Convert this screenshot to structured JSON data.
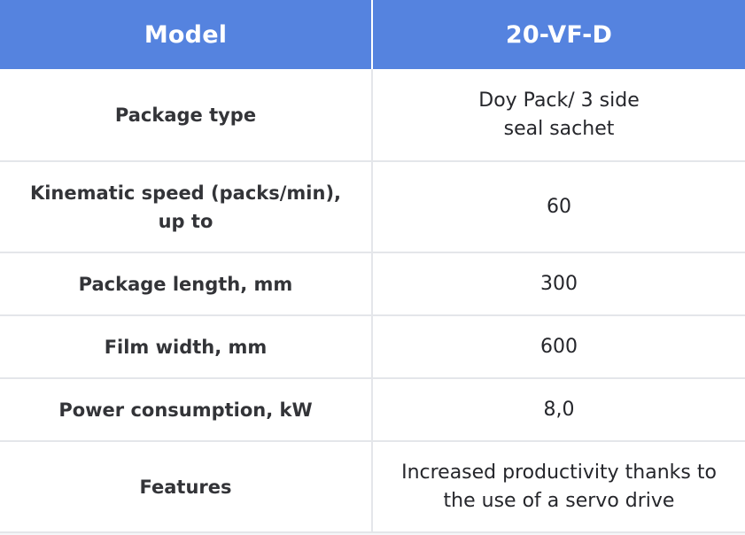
{
  "header": {
    "col1": "Model",
    "col2": "20-VF-D"
  },
  "rows": [
    {
      "label": "Package type",
      "value_line1": "Doy Pack/ 3 side",
      "value_line2": "seal sachet"
    },
    {
      "label_line1": "Kinematic speed (packs/min),",
      "label_line2": "up to",
      "value": "60"
    },
    {
      "label": "Package length, mm",
      "value": "300"
    },
    {
      "label": "Film width, mm",
      "value": "600"
    },
    {
      "label": "Power consumption, kW",
      "value": "8,0"
    },
    {
      "label": "Features",
      "value_line1": "Increased productivity thanks to",
      "value_line2": "the use of a servo drive"
    }
  ],
  "colors": {
    "header_bg": "#5583df",
    "header_text": "#ffffff",
    "grid_line": "#e4e6ea",
    "body_text": "#25262b"
  }
}
